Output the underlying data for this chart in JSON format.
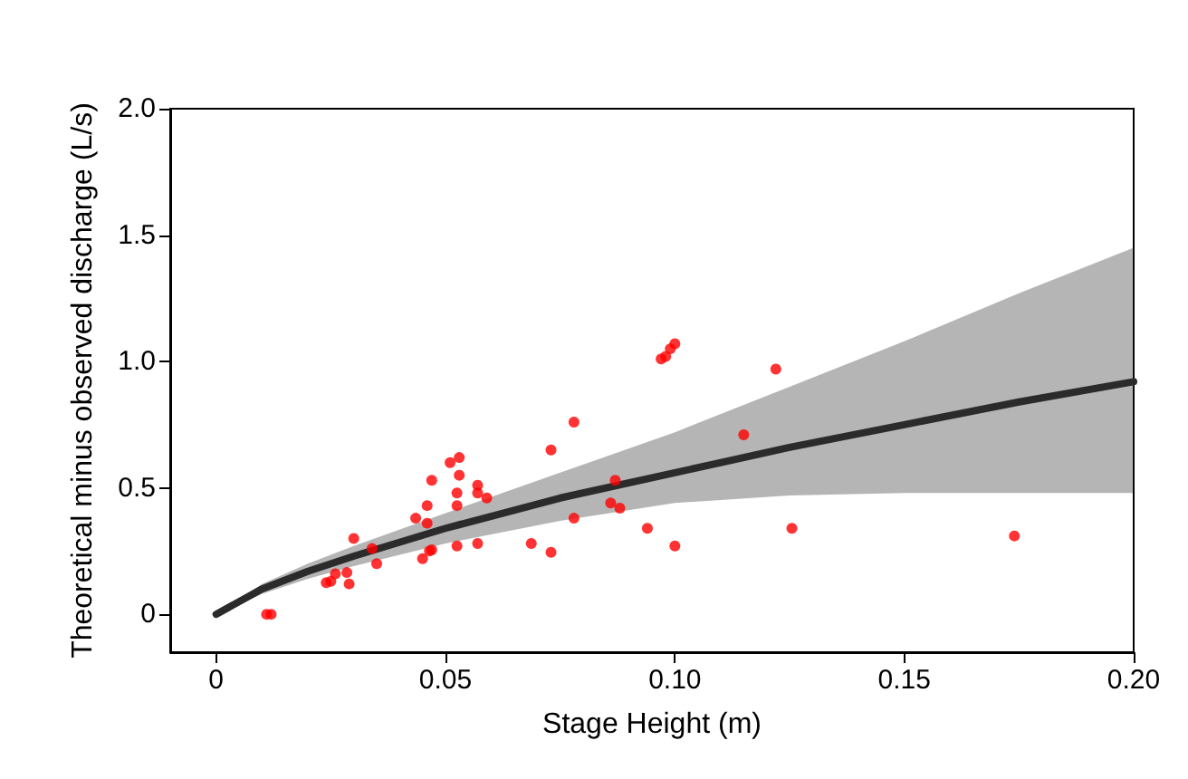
{
  "chart_data": {
    "type": "scatter",
    "xlabel": "Stage Height (m)",
    "ylabel": "Theoretical minus observed discharge (L/s)",
    "xlim": [
      -0.01,
      0.2
    ],
    "ylim": [
      -0.15,
      2.0
    ],
    "xticks": [
      0,
      {
        "value": 0.05,
        "label": "0.05"
      },
      {
        "value": 0.1,
        "label": "0.10"
      },
      {
        "value": 0.15,
        "label": "0.15"
      },
      {
        "value": 0.2,
        "label": "0.20"
      }
    ],
    "yticks": [
      0,
      0.5,
      {
        "value": 1,
        "label": "1.0"
      },
      1.5,
      {
        "value": 2,
        "label": "2.0"
      }
    ],
    "grid": false,
    "series": [
      {
        "type": "line",
        "color": "#2b2b2b",
        "marker": "none",
        "x": [
          0,
          0.01,
          0.02,
          0.03,
          0.05,
          0.075,
          0.1,
          0.125,
          0.15,
          0.175,
          0.2
        ],
        "values": [
          0,
          0.1,
          0.17,
          0.23,
          0.34,
          0.46,
          0.56,
          0.66,
          0.75,
          0.84,
          0.92
        ],
        "lower": [
          0,
          0.08,
          0.14,
          0.19,
          0.28,
          0.37,
          0.44,
          0.47,
          0.48,
          0.48,
          0.48
        ],
        "upper": [
          0,
          0.12,
          0.2,
          0.27,
          0.4,
          0.56,
          0.72,
          0.9,
          1.08,
          1.27,
          1.45
        ]
      },
      {
        "color": "#ff0000",
        "marker": "circle",
        "x": [
          0.011,
          0.012,
          0.024,
          0.025,
          0.026,
          0.0285,
          0.029,
          0.03,
          0.034,
          0.035,
          0.0435,
          0.045,
          0.046,
          0.046,
          0.0465,
          0.047,
          0.047,
          0.051,
          0.0525,
          0.0525,
          0.0525,
          0.053,
          0.053,
          0.057,
          0.057,
          0.057,
          0.059,
          0.0687,
          0.073,
          0.073,
          0.078,
          0.078,
          0.086,
          0.087,
          0.088,
          0.094,
          0.097,
          0.098,
          0.099,
          0.1,
          0.1,
          0.115,
          0.122,
          0.1255,
          0.174
        ],
        "values": [
          0.0,
          0.0,
          0.125,
          0.13,
          0.16,
          0.165,
          0.12,
          0.3,
          0.26,
          0.2,
          0.38,
          0.22,
          0.43,
          0.36,
          0.25,
          0.255,
          0.53,
          0.6,
          0.48,
          0.43,
          0.27,
          0.62,
          0.55,
          0.51,
          0.48,
          0.28,
          0.46,
          0.28,
          0.245,
          0.65,
          0.76,
          0.38,
          0.44,
          0.53,
          0.42,
          0.34,
          1.01,
          1.02,
          1.05,
          1.07,
          0.27,
          0.71,
          0.97,
          0.34,
          0.31
        ]
      }
    ]
  }
}
